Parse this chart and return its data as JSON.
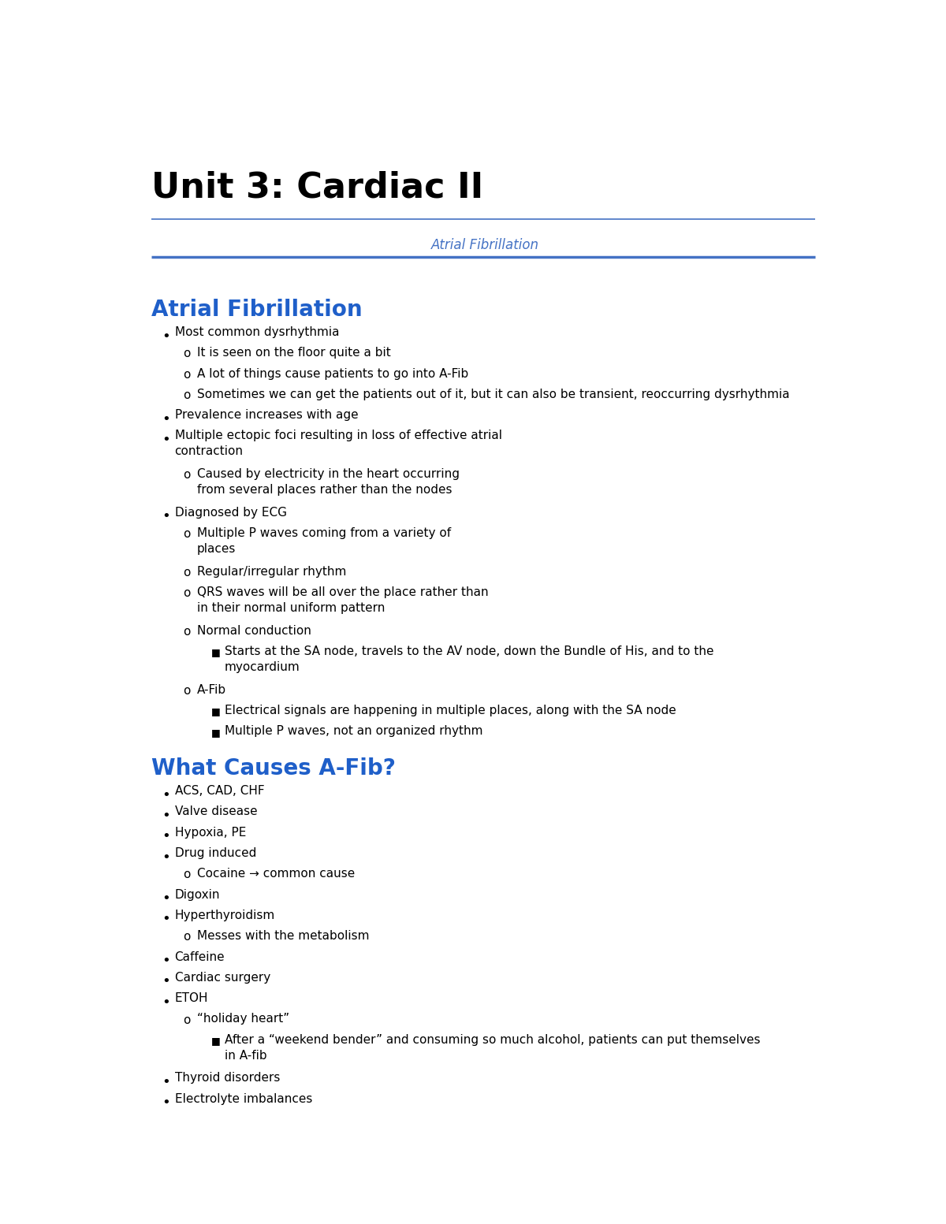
{
  "bg_color": "#ffffff",
  "title": "Unit 3: Cardiac II",
  "title_color": "#000000",
  "title_fontsize": 32,
  "section_tab": "Atrial Fibrillation",
  "section_tab_color": "#4472c4",
  "section_tab_fontsize": 12,
  "divider_color": "#4472c4",
  "body_color": "#000000",
  "body_fontsize": 11,
  "lines": [
    {
      "level": 0,
      "type": "section",
      "text": "Atrial Fibrillation",
      "color": "#1f5fc9",
      "size": 20
    },
    {
      "level": 1,
      "type": "bullet",
      "text": "Most common dysrhythmia"
    },
    {
      "level": 2,
      "type": "circle",
      "text": "It is seen on the floor quite a bit"
    },
    {
      "level": 2,
      "type": "circle",
      "text": "A lot of things cause patients to go into A-Fib"
    },
    {
      "level": 2,
      "type": "circle",
      "text": "Sometimes we can get the patients out of it, but it can also be transient, reoccurring dysrhythmia"
    },
    {
      "level": 1,
      "type": "bullet",
      "text": "Prevalence increases with age"
    },
    {
      "level": 1,
      "type": "bullet",
      "text": "Multiple ectopic foci resulting in loss of effective atrial\ncontraction"
    },
    {
      "level": 2,
      "type": "circle",
      "text": "Caused by electricity in the heart occurring\nfrom several places rather than the nodes"
    },
    {
      "level": 1,
      "type": "bullet",
      "text": "Diagnosed by ECG"
    },
    {
      "level": 2,
      "type": "circle",
      "text": "Multiple P waves coming from a variety of\nplaces"
    },
    {
      "level": 2,
      "type": "circle",
      "text": "Regular/irregular rhythm"
    },
    {
      "level": 2,
      "type": "circle",
      "text": "QRS waves will be all over the place rather than\nin their normal uniform pattern"
    },
    {
      "level": 2,
      "type": "circle",
      "text": "Normal conduction"
    },
    {
      "level": 3,
      "type": "square",
      "text": "Starts at the SA node, travels to the AV node, down the Bundle of His, and to the\nmyocardium"
    },
    {
      "level": 2,
      "type": "circle",
      "text": "A-Fib"
    },
    {
      "level": 3,
      "type": "square",
      "text": "Electrical signals are happening in multiple places, along with the SA node"
    },
    {
      "level": 3,
      "type": "square",
      "text": "Multiple P waves, not an organized rhythm"
    },
    {
      "level": 0,
      "type": "section",
      "text": "What Causes A-Fib?",
      "color": "#1f5fc9",
      "size": 20
    },
    {
      "level": 1,
      "type": "bullet",
      "text": "ACS, CAD, CHF"
    },
    {
      "level": 1,
      "type": "bullet",
      "text": "Valve disease"
    },
    {
      "level": 1,
      "type": "bullet",
      "text": "Hypoxia, PE"
    },
    {
      "level": 1,
      "type": "bullet",
      "text": "Drug induced"
    },
    {
      "level": 2,
      "type": "circle",
      "text": "Cocaine → common cause"
    },
    {
      "level": 1,
      "type": "bullet",
      "text": "Digoxin"
    },
    {
      "level": 1,
      "type": "bullet",
      "text": "Hyperthyroidism"
    },
    {
      "level": 2,
      "type": "circle",
      "text": "Messes with the metabolism"
    },
    {
      "level": 1,
      "type": "bullet",
      "text": "Caffeine"
    },
    {
      "level": 1,
      "type": "bullet",
      "text": "Cardiac surgery"
    },
    {
      "level": 1,
      "type": "bullet",
      "text": "ETOH"
    },
    {
      "level": 2,
      "type": "circle",
      "text": "“holiday heart”"
    },
    {
      "level": 3,
      "type": "square",
      "text": "After a “weekend bender” and consuming so much alcohol, patients can put themselves\nin A-fib"
    },
    {
      "level": 1,
      "type": "bullet",
      "text": "Thyroid disorders"
    },
    {
      "level": 1,
      "type": "bullet",
      "text": "Electrolyte imbalances"
    }
  ]
}
